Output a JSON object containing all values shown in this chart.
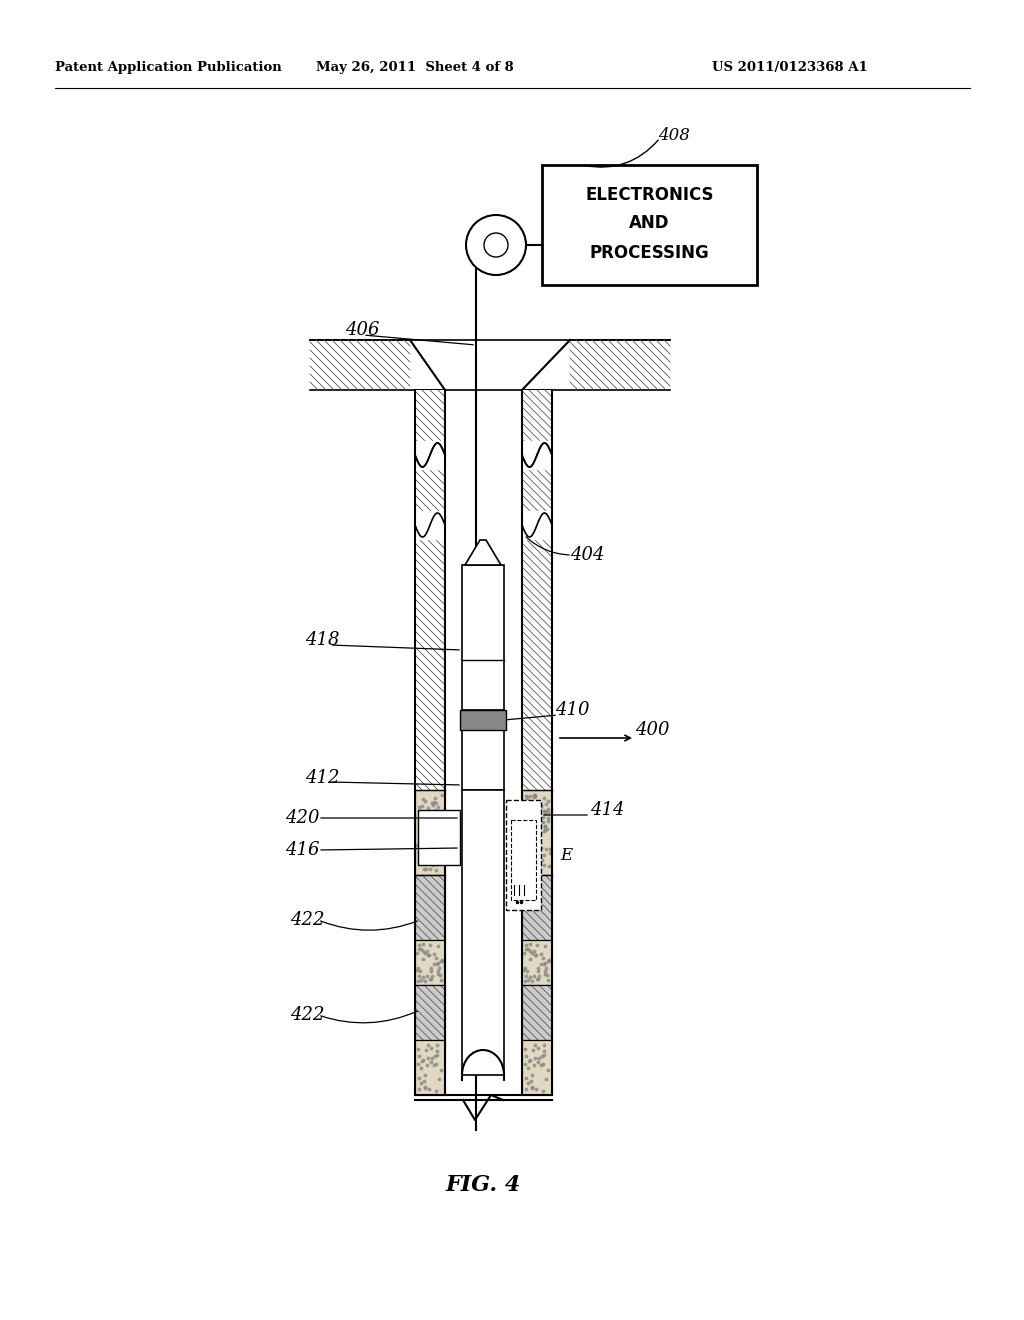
{
  "header_left": "Patent Application Publication",
  "header_mid": "May 26, 2011  Sheet 4 of 8",
  "header_right": "US 2011/0123368 A1",
  "fig_label": "FIG. 4",
  "bg_color": "#ffffff",
  "lc": "#000000",
  "hatch_gray": "#b0b0b0",
  "light_gray": "#d8d8d8",
  "sandy_color": "#e8e0cc"
}
